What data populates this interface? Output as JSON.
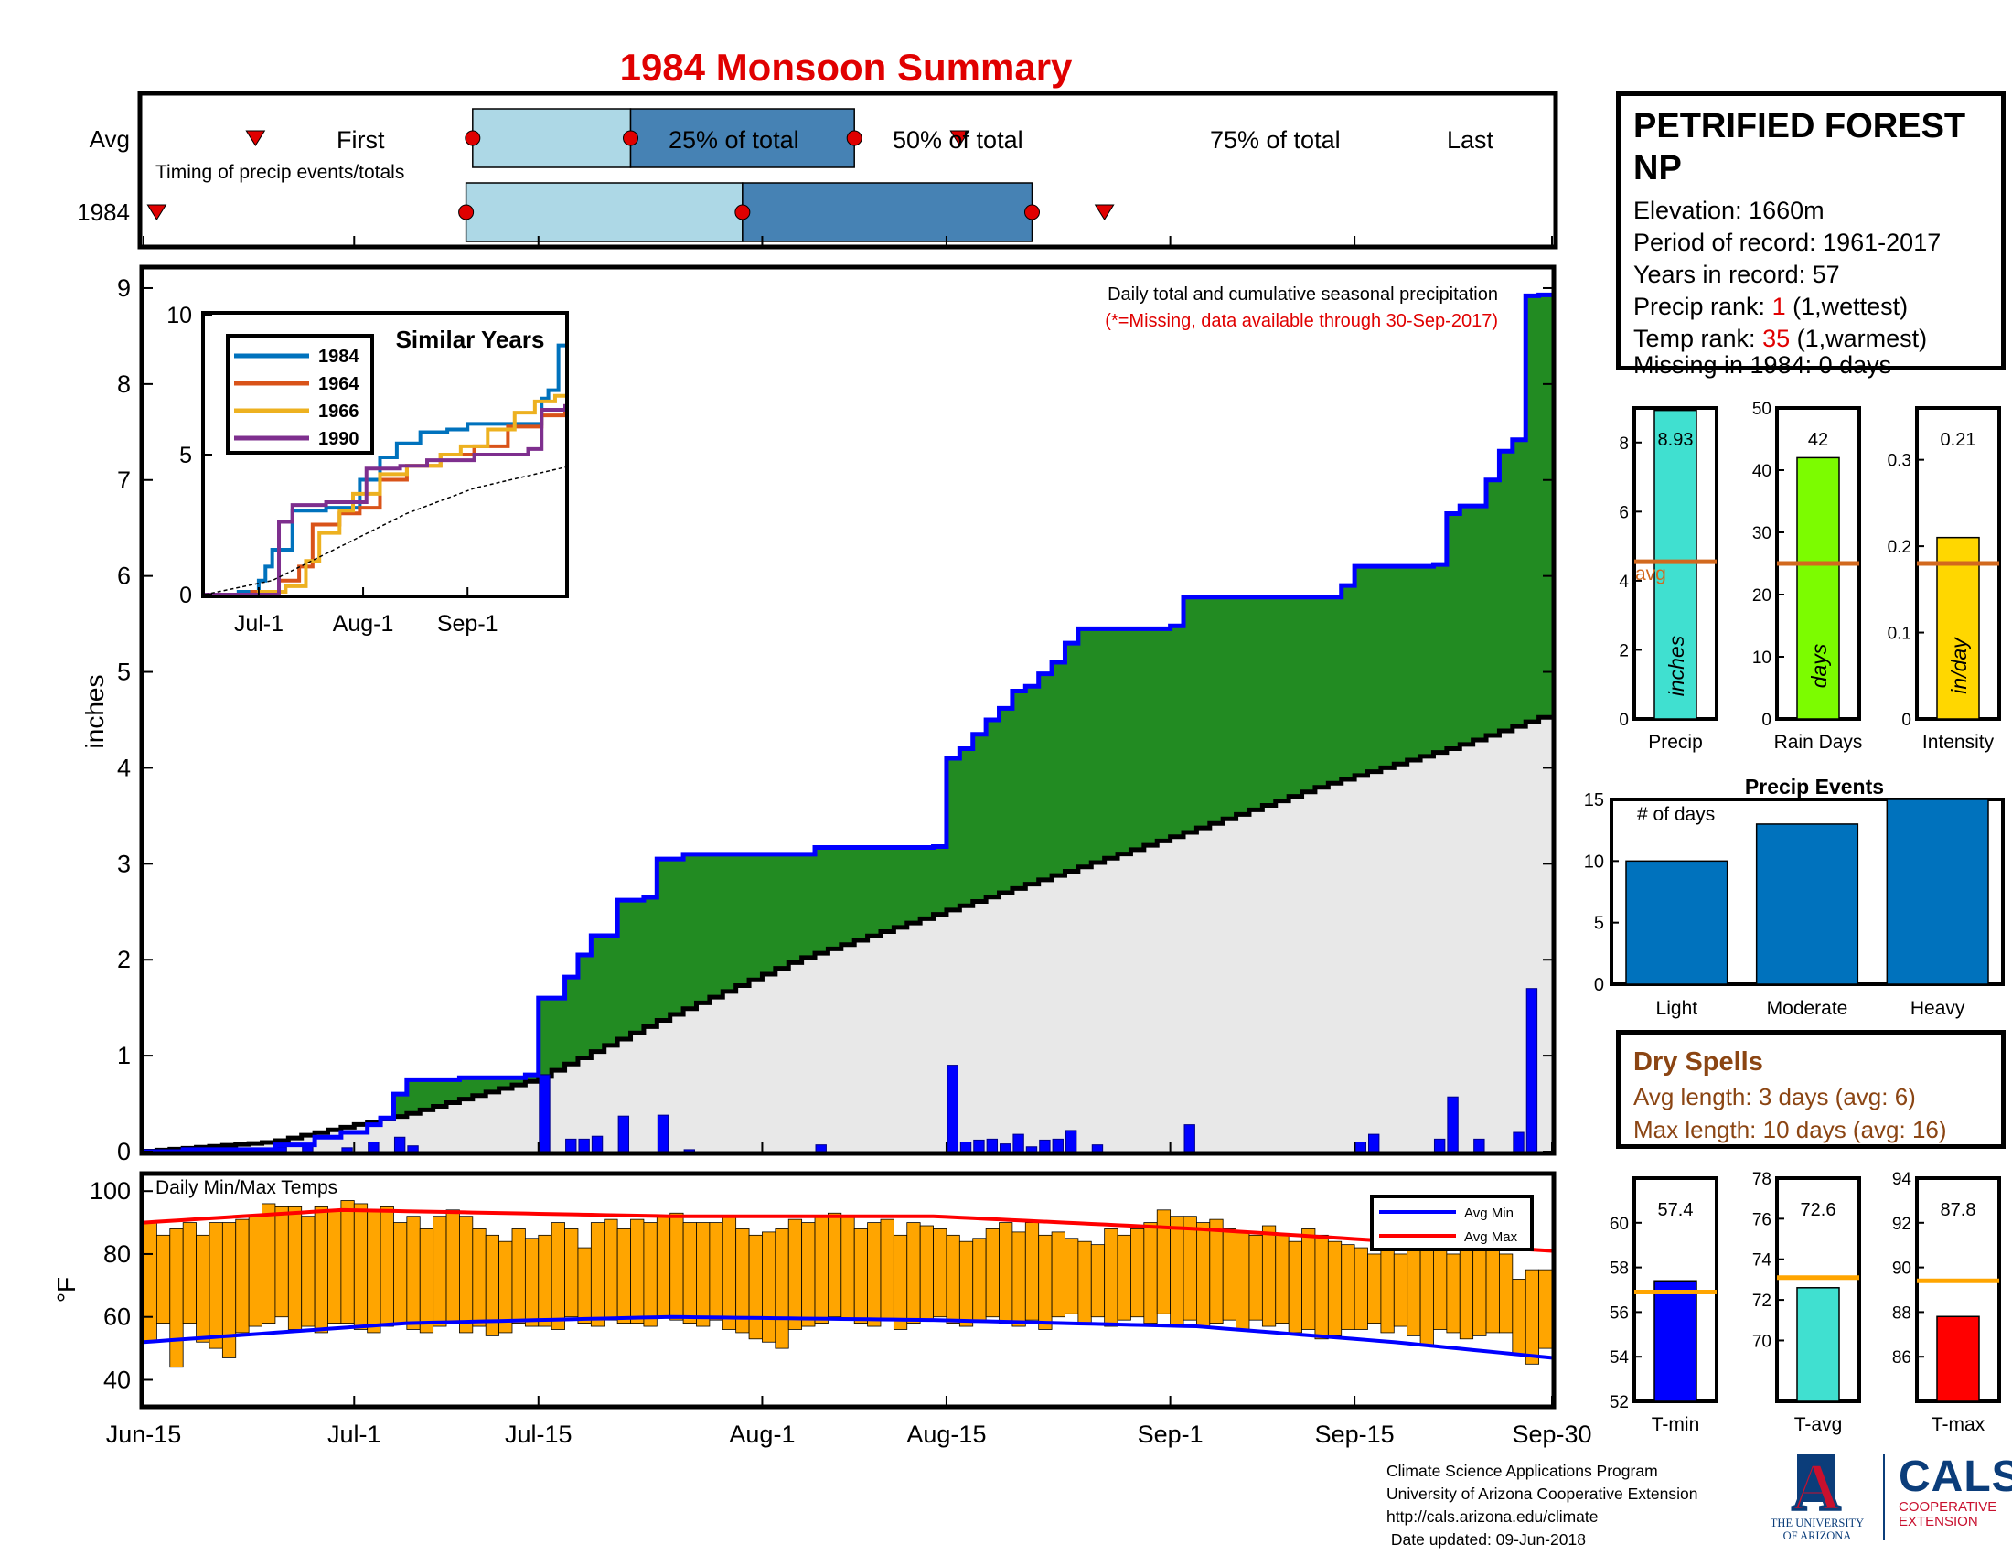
{
  "title": "1984 Monsoon Summary",
  "timing": {
    "avg_label": "Avg",
    "year_label": "1984",
    "subtitle": "Timing of precip events/totals",
    "first_label": "First",
    "p25_label": "25% of total",
    "p50_label": "50% of total",
    "p75_label": "75% of total",
    "last_label": "Last"
  },
  "station": {
    "name": "PETRIFIED FOREST NP",
    "elevation": "Elevation: 1660m",
    "period": "Period of record: 1961-2017",
    "years": "Years in record: 57",
    "precip_rank_prefix": "Precip rank: ",
    "precip_rank": "1",
    "precip_rank_suffix": " (1,wettest)",
    "temp_rank_prefix": "Temp rank: ",
    "temp_rank": "35",
    "temp_rank_suffix": " (1,warmest)",
    "missing": "Missing in 1984: 0 days"
  },
  "dry_spells": {
    "title": "Dry Spells",
    "avg": "Avg length: 3 days (avg: 6)",
    "max": "Max length: 10 days (avg: 16)"
  },
  "footer": {
    "line1": "Climate Science Applications Program",
    "line2": "University of Arizona Cooperative Extension",
    "line3": "http://cals.arizona.edu/climate",
    "line4": " Date updated: 09-Jun-2018"
  },
  "logos": {
    "ua_letter": "A",
    "ua_text1": "THE UNIVERSITY",
    "ua_text2": "OF ARIZONA",
    "cals_word": "CALS",
    "cals_text1": "COOPERATIVE",
    "cals_text2": "EXTENSION"
  },
  "colors": {
    "green": "#228b22",
    "blue": "#0000ff",
    "gray": "#e8e8e8",
    "light_blue": "#add8e6",
    "steel_blue": "#4682b4",
    "orange": "#ffa500",
    "red": "#ff0000",
    "navy": "#0b3d7a"
  },
  "chart_data": [
    {
      "id": "timing",
      "type": "boxplot-timeline",
      "xlim": [
        0,
        107
      ],
      "avg": {
        "first": 8.5,
        "p25": 25,
        "p50": 37,
        "p75": 54,
        "last": 62
      },
      "year": {
        "first": 1,
        "p25": 24.5,
        "p50": 45.5,
        "p75": 67.5,
        "last": 73
      }
    },
    {
      "id": "precip",
      "type": "area",
      "xlabel": "",
      "ylabel": "inches",
      "annotation": "Daily total and cumulative seasonal precipitation",
      "note": "(*=Missing, data available through 30-Sep-2017)",
      "ylim": [
        0,
        9.2
      ],
      "yticks": [
        0,
        1,
        2,
        3,
        4,
        5,
        6,
        7,
        8,
        9
      ],
      "xlim": [
        0,
        107
      ],
      "xticks": [
        0,
        16,
        30,
        47,
        61,
        78,
        92,
        107
      ],
      "xtick_labels": [
        "Jun-15",
        "Jul-1",
        "Jul-15",
        "Aug-1",
        "Aug-15",
        "Sep-1",
        "Sep-15",
        "Sep-30"
      ],
      "avg_cumulative": [
        [
          0,
          0
        ],
        [
          10,
          0.1
        ],
        [
          20,
          0.38
        ],
        [
          30,
          0.75
        ],
        [
          40,
          1.4
        ],
        [
          50,
          2.0
        ],
        [
          60,
          2.45
        ],
        [
          70,
          2.9
        ],
        [
          80,
          3.35
        ],
        [
          90,
          3.82
        ],
        [
          100,
          4.22
        ],
        [
          107,
          4.55
        ]
      ],
      "cumulative_1984": [
        [
          0,
          0
        ],
        [
          3,
          0.02
        ],
        [
          10,
          0.07
        ],
        [
          13,
          0.15
        ],
        [
          15,
          0.2
        ],
        [
          17,
          0.28
        ],
        [
          18,
          0.35
        ],
        [
          19,
          0.6
        ],
        [
          20,
          0.75
        ],
        [
          24,
          0.77
        ],
        [
          29,
          0.8
        ],
        [
          30,
          1.6
        ],
        [
          32,
          1.82
        ],
        [
          33,
          2.05
        ],
        [
          34,
          2.25
        ],
        [
          36,
          2.62
        ],
        [
          38,
          2.65
        ],
        [
          39,
          3.05
        ],
        [
          41,
          3.1
        ],
        [
          51,
          3.17
        ],
        [
          60,
          3.18
        ],
        [
          61,
          4.1
        ],
        [
          62,
          4.2
        ],
        [
          63,
          4.35
        ],
        [
          64,
          4.5
        ],
        [
          65,
          4.62
        ],
        [
          66,
          4.8
        ],
        [
          67,
          4.85
        ],
        [
          68,
          4.98
        ],
        [
          69,
          5.1
        ],
        [
          70,
          5.3
        ],
        [
          71,
          5.45
        ],
        [
          78,
          5.48
        ],
        [
          79,
          5.78
        ],
        [
          90,
          5.78
        ],
        [
          91,
          5.9
        ],
        [
          92,
          6.1
        ],
        [
          98,
          6.12
        ],
        [
          99,
          6.65
        ],
        [
          100,
          6.73
        ],
        [
          101,
          6.73
        ],
        [
          102,
          7.0
        ],
        [
          103,
          7.3
        ],
        [
          104,
          7.42
        ],
        [
          105,
          8.92
        ],
        [
          106,
          8.93
        ],
        [
          107,
          8.93
        ]
      ],
      "daily_1984": [
        [
          10,
          0.05
        ],
        [
          12,
          0.07
        ],
        [
          15,
          0.04
        ],
        [
          17,
          0.1
        ],
        [
          19,
          0.15
        ],
        [
          20,
          0.06
        ],
        [
          30,
          0.8
        ],
        [
          32,
          0.13
        ],
        [
          33,
          0.13
        ],
        [
          34,
          0.16
        ],
        [
          36,
          0.37
        ],
        [
          39,
          0.38
        ],
        [
          41,
          0.02
        ],
        [
          51,
          0.07
        ],
        [
          61,
          0.9
        ],
        [
          62,
          0.1
        ],
        [
          63,
          0.12
        ],
        [
          64,
          0.13
        ],
        [
          65,
          0.08
        ],
        [
          66,
          0.18
        ],
        [
          67,
          0.05
        ],
        [
          68,
          0.12
        ],
        [
          69,
          0.13
        ],
        [
          70,
          0.22
        ],
        [
          72,
          0.07
        ],
        [
          79,
          0.28
        ],
        [
          92,
          0.1
        ],
        [
          93,
          0.18
        ],
        [
          98,
          0.13
        ],
        [
          99,
          0.57
        ],
        [
          101,
          0.13
        ],
        [
          104,
          0.2
        ],
        [
          105,
          1.7
        ]
      ]
    },
    {
      "id": "inset",
      "type": "line",
      "title": "Similar Years",
      "ylim": [
        0,
        10
      ],
      "yticks": [
        0,
        5,
        10
      ],
      "xtick_labels": [
        "Jul-1",
        "Aug-1",
        "Sep-1"
      ],
      "series": [
        {
          "name": "1984",
          "color": "#0072bd",
          "values": [
            [
              0,
              0
            ],
            [
              10,
              0.1
            ],
            [
              16,
              0.5
            ],
            [
              18,
              1
            ],
            [
              20,
              1.6
            ],
            [
              26,
              3
            ],
            [
              30,
              3
            ],
            [
              36,
              3.1
            ],
            [
              46,
              4.1
            ],
            [
              52,
              4.9
            ],
            [
              57,
              5.4
            ],
            [
              64,
              5.8
            ],
            [
              72,
              5.9
            ],
            [
              78,
              6.1
            ],
            [
              92,
              6.1
            ],
            [
              100,
              7
            ],
            [
              102,
              7.3
            ],
            [
              105,
              8.9
            ],
            [
              107,
              8.9
            ]
          ]
        },
        {
          "name": "1964",
          "color": "#d95319",
          "values": [
            [
              0,
              0
            ],
            [
              14,
              0.1
            ],
            [
              22,
              0.5
            ],
            [
              28,
              1
            ],
            [
              32,
              2.5
            ],
            [
              40,
              2.9
            ],
            [
              46,
              3.1
            ],
            [
              52,
              4.1
            ],
            [
              60,
              4.6
            ],
            [
              70,
              5
            ],
            [
              80,
              5.3
            ],
            [
              90,
              6
            ],
            [
              100,
              6.4
            ],
            [
              107,
              6.8
            ]
          ]
        },
        {
          "name": "1966",
          "color": "#edb120",
          "values": [
            [
              0,
              0
            ],
            [
              16,
              0.1
            ],
            [
              24,
              0.3
            ],
            [
              30,
              1.2
            ],
            [
              34,
              2.2
            ],
            [
              40,
              3
            ],
            [
              44,
              3.6
            ],
            [
              52,
              4.3
            ],
            [
              60,
              4.6
            ],
            [
              70,
              5
            ],
            [
              76,
              5.3
            ],
            [
              84,
              5.9
            ],
            [
              92,
              6.5
            ],
            [
              98,
              6.9
            ],
            [
              104,
              7.1
            ],
            [
              107,
              7.1
            ]
          ]
        },
        {
          "name": "1990",
          "color": "#7e2f8e",
          "values": [
            [
              0,
              0
            ],
            [
              16,
              0
            ],
            [
              22,
              2.6
            ],
            [
              26,
              3.2
            ],
            [
              36,
              3.3
            ],
            [
              44,
              3.3
            ],
            [
              48,
              4.5
            ],
            [
              58,
              4.6
            ],
            [
              66,
              4.8
            ],
            [
              74,
              4.8
            ],
            [
              80,
              5
            ],
            [
              90,
              5
            ],
            [
              96,
              5.2
            ],
            [
              100,
              6.6
            ],
            [
              107,
              6.8
            ]
          ]
        },
        {
          "name": "avg",
          "color": "#000000",
          "values": [
            [
              0,
              0
            ],
            [
              20,
              0.5
            ],
            [
              40,
              1.7
            ],
            [
              60,
              2.9
            ],
            [
              80,
              3.8
            ],
            [
              107,
              4.55
            ]
          ]
        }
      ]
    },
    {
      "id": "precip_bars",
      "type": "bar",
      "categories": [
        "Precip",
        "Rain Days",
        "Intensity"
      ],
      "values": [
        8.93,
        42,
        0.21
      ],
      "value_labels": [
        "8.93",
        "42",
        "0.21"
      ],
      "units": [
        "inches",
        "days",
        "in/day"
      ],
      "avg": [
        4.55,
        25,
        0.18
      ],
      "avg_label": "avg",
      "ylims": [
        [
          0,
          9
        ],
        [
          0,
          50
        ],
        [
          0,
          0.36
        ]
      ],
      "yticks": [
        [
          0,
          2,
          4,
          6,
          8
        ],
        [
          0,
          10,
          20,
          30,
          40,
          50
        ],
        [
          0,
          0.1,
          0.2,
          0.3
        ]
      ],
      "colors": [
        "#40e0d0",
        "#7cfc00",
        "#ffd700"
      ]
    },
    {
      "id": "precip_events",
      "type": "bar",
      "title": "Precip Events",
      "ylabel": "# of days",
      "categories": [
        "Light",
        "Moderate",
        "Heavy"
      ],
      "values": [
        10,
        13,
        15
      ],
      "ylim": [
        0,
        15
      ],
      "yticks": [
        0,
        5,
        10,
        15
      ]
    },
    {
      "id": "temps",
      "type": "range-bar",
      "title": "Daily Min/Max Temps",
      "ylabel": "°F",
      "ylim": [
        32,
        105
      ],
      "yticks": [
        40,
        60,
        80,
        100
      ],
      "legend": [
        "Avg Min",
        "Avg Max"
      ],
      "tmin": [
        52,
        58,
        44,
        58,
        52,
        50,
        47,
        55,
        57,
        58,
        60,
        56,
        57,
        55,
        58,
        58,
        56,
        55,
        57,
        58,
        56,
        55,
        57,
        58,
        55,
        57,
        54,
        55,
        58,
        57,
        57,
        56,
        60,
        58,
        57,
        59,
        58,
        58,
        57,
        60,
        59,
        58,
        57,
        59,
        56,
        55,
        53,
        52,
        50,
        56,
        57,
        58,
        60,
        59,
        58,
        57,
        59,
        56,
        58,
        59,
        60,
        58,
        57,
        59,
        60,
        58,
        57,
        59,
        56,
        60,
        61,
        58,
        60,
        57,
        59,
        60,
        58,
        61,
        57,
        59,
        57,
        58,
        59,
        56,
        59,
        57,
        58,
        55,
        56,
        53,
        54,
        56,
        56,
        58,
        55,
        57,
        54,
        51,
        56,
        55,
        53,
        54,
        55,
        55,
        48,
        45,
        50
      ],
      "tmax": [
        90,
        86,
        88,
        90,
        86,
        90,
        90,
        91,
        92,
        96,
        95,
        95,
        92,
        95,
        94,
        97,
        96,
        94,
        95,
        90,
        92,
        88,
        92,
        94,
        92,
        88,
        86,
        84,
        88,
        85,
        86,
        90,
        88,
        82,
        90,
        91,
        88,
        91,
        90,
        92,
        93,
        90,
        90,
        90,
        92,
        88,
        86,
        87,
        88,
        91,
        90,
        92,
        93,
        92,
        88,
        90,
        91,
        86,
        90,
        89,
        88,
        86,
        84,
        85,
        88,
        90,
        87,
        90,
        86,
        87,
        85,
        84,
        83,
        88,
        86,
        88,
        90,
        94,
        92,
        92,
        90,
        91,
        88,
        87,
        86,
        89,
        86,
        84,
        88,
        86,
        84,
        83,
        82,
        80,
        84,
        80,
        83,
        82,
        82,
        80,
        84,
        85,
        81,
        80,
        72,
        75,
        75
      ],
      "avg_min": [
        [
          0,
          52
        ],
        [
          10,
          55
        ],
        [
          20,
          58
        ],
        [
          40,
          60
        ],
        [
          60,
          59
        ],
        [
          80,
          57
        ],
        [
          95,
          52
        ],
        [
          107,
          47
        ]
      ],
      "avg_max": [
        [
          0,
          90
        ],
        [
          15,
          94
        ],
        [
          40,
          92
        ],
        [
          60,
          92
        ],
        [
          80,
          88
        ],
        [
          95,
          84
        ],
        [
          107,
          81
        ]
      ]
    },
    {
      "id": "temp_bars",
      "type": "bar",
      "categories": [
        "T-min",
        "T-avg",
        "T-max"
      ],
      "values": [
        57.4,
        72.6,
        87.8
      ],
      "value_labels": [
        "57.4",
        "72.6",
        "87.8"
      ],
      "avg": [
        56.9,
        73.1,
        89.4
      ],
      "ylims": [
        [
          52,
          62
        ],
        [
          67,
          78
        ],
        [
          84,
          94
        ]
      ],
      "yticks": [
        [
          52,
          54,
          56,
          58,
          60
        ],
        [
          70,
          72,
          74,
          76,
          78
        ],
        [
          86,
          88,
          90,
          92,
          94
        ]
      ],
      "colors": [
        "#0000ff",
        "#40e0d0",
        "#ff0000"
      ]
    }
  ]
}
